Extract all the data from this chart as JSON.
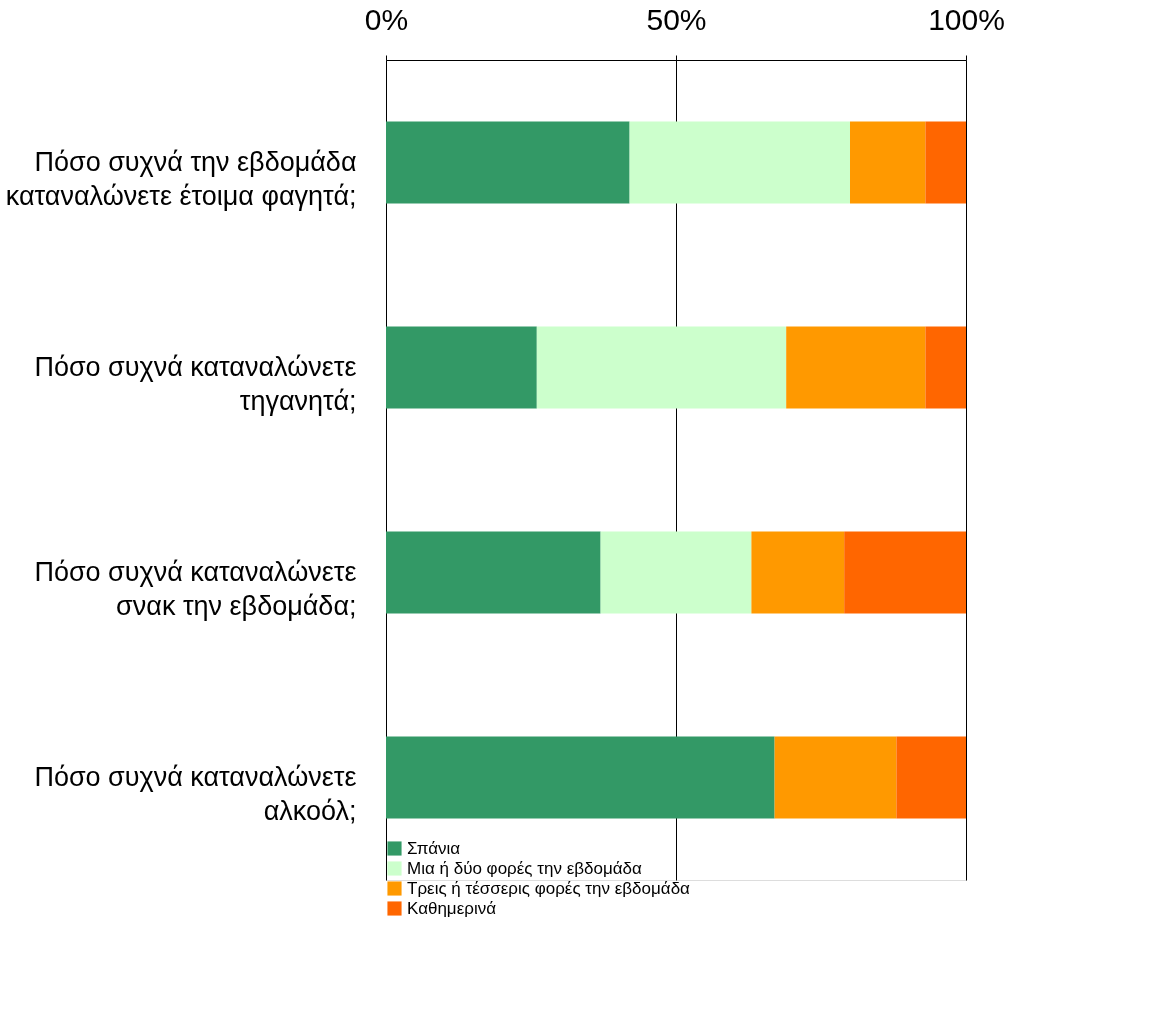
{
  "chart_data": {
    "type": "bar",
    "orientation": "horizontal",
    "stacked": true,
    "categories": [
      "Πόσο συχνά την εβδομάδα καταναλώνετε έτοιμα φαγητά;",
      "Πόσο συχνά καταναλώνετε τηγανητά;",
      "Πόσο συχνά καταναλώνετε σνακ την εβδομάδα;",
      "Πόσο συχνά καταναλώνετε αλκοόλ;"
    ],
    "series": [
      {
        "name": "Σπάνια",
        "color": "#339966",
        "values": [
          42,
          26,
          37,
          67
        ]
      },
      {
        "name": "Μια ή δύο φορές την εβδομάδα",
        "color": "#ccffcc",
        "values": [
          38,
          43,
          26,
          0
        ]
      },
      {
        "name": "Τρεις ή τέσσερις φορές την εβδομάδα",
        "color": "#ff9900",
        "values": [
          13,
          24,
          16,
          21
        ]
      },
      {
        "name": "Καθημερινά",
        "color": "#ff6600",
        "values": [
          7,
          7,
          21,
          12
        ]
      }
    ],
    "xlim": [
      0,
      100
    ],
    "xticks": [
      {
        "value": 0,
        "label": "0%"
      },
      {
        "value": 50,
        "label": "50%"
      },
      {
        "value": 100,
        "label": "100%"
      }
    ],
    "grid": "x",
    "legend": "bottom left"
  }
}
